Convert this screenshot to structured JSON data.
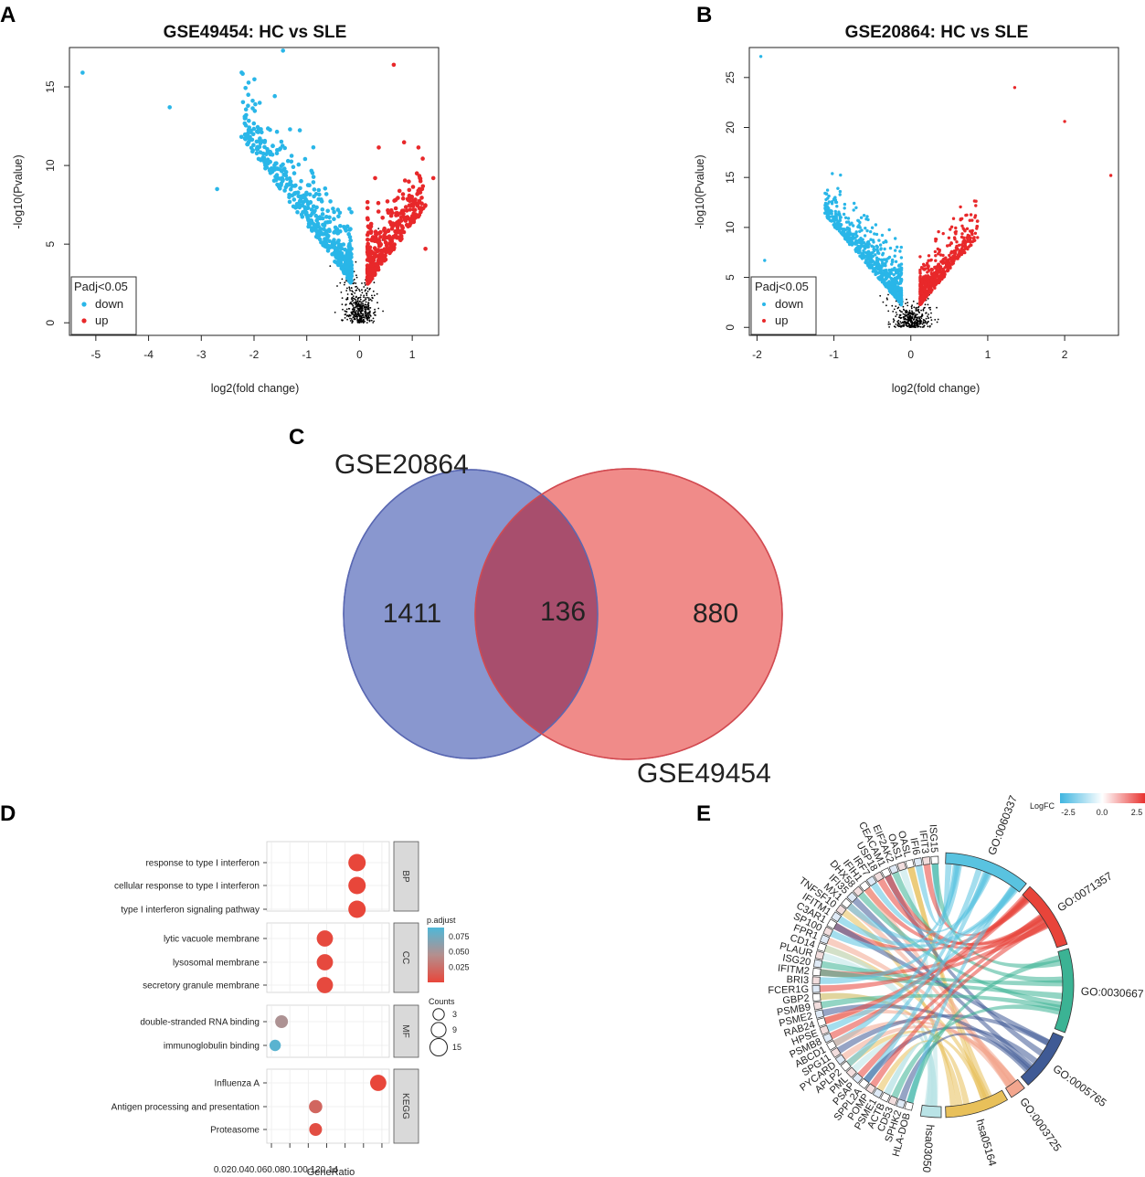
{
  "colors": {
    "down": "#29b6e8",
    "up": "#e8282a",
    "ns": "#000000",
    "venn_left": "#6f80c4",
    "venn_right": "#ec6e6c",
    "venn_overlap": "#a84e6d",
    "padj_low": "#e8463a",
    "padj_high": "#4fb8d8"
  },
  "panels": {
    "A": "A",
    "B": "B",
    "C": "C",
    "D": "D",
    "E": "E"
  },
  "chart_data": [
    {
      "id": "A",
      "type": "scatter",
      "title": "GSE49454: HC vs SLE",
      "xlabel": "log2(fold change)",
      "ylabel": "-log10(Pvalue)",
      "xlim": [
        -5.5,
        1.5
      ],
      "ylim": [
        -0.8,
        17.5
      ],
      "xticks": [
        -5,
        -4,
        -3,
        -2,
        -1,
        0,
        1
      ],
      "yticks": [
        0,
        5,
        10,
        15
      ],
      "legend": {
        "title": "Padj<0.05",
        "entries": [
          "down",
          "up"
        ],
        "position": "bottom-left"
      },
      "notable_points": [
        {
          "x": -5.25,
          "y": 15.9,
          "group": "down"
        },
        {
          "x": -1.45,
          "y": 17.3,
          "group": "down"
        },
        {
          "x": -3.6,
          "y": 13.7,
          "group": "down"
        },
        {
          "x": -2.7,
          "y": 8.5,
          "group": "down"
        },
        {
          "x": 0.65,
          "y": 16.4,
          "group": "up"
        },
        {
          "x": 1.4,
          "y": 9.2,
          "group": "up"
        },
        {
          "x": 1.25,
          "y": 4.7,
          "group": "up"
        }
      ]
    },
    {
      "id": "B",
      "type": "scatter",
      "title": "GSE20864: HC vs SLE",
      "xlabel": "log2(fold change)",
      "ylabel": "-log10(Pvalue)",
      "xlim": [
        -2.1,
        2.7
      ],
      "ylim": [
        -0.8,
        28
      ],
      "xticks": [
        -2,
        -1,
        0,
        1,
        2
      ],
      "yticks": [
        0,
        5,
        10,
        15,
        20,
        25
      ],
      "legend": {
        "title": "Padj<0.05",
        "entries": [
          "down",
          "up"
        ],
        "position": "bottom-left"
      },
      "notable_points": [
        {
          "x": -1.95,
          "y": 27.1,
          "group": "down"
        },
        {
          "x": -1.9,
          "y": 6.7,
          "group": "down"
        },
        {
          "x": 2.6,
          "y": 15.2,
          "group": "up"
        },
        {
          "x": 2.0,
          "y": 20.6,
          "group": "up"
        },
        {
          "x": 1.35,
          "y": 24.0,
          "group": "up"
        }
      ]
    },
    {
      "id": "C",
      "type": "venn",
      "sets": [
        {
          "name": "GSE20864",
          "only": "1411"
        },
        {
          "name": "GSE49454",
          "only": "880"
        }
      ],
      "overlap": "136"
    },
    {
      "id": "D",
      "type": "dotplot",
      "xlabel": "GeneRatio",
      "xticks": [
        "0.02",
        "0.04",
        "0.06",
        "0.08",
        "0.10",
        "0.12",
        "0.14"
      ],
      "xtick_text": "0.020.040.060.080.100.120.14",
      "xlim": [
        0.015,
        0.148
      ],
      "color_legend": {
        "title": "p.adjust",
        "ticks": [
          "0.075",
          "0.050",
          "0.025"
        ],
        "tick_values": [
          0.075,
          0.05,
          0.025
        ],
        "range": [
          0.0,
          0.09
        ]
      },
      "size_legend": {
        "title": "Counts",
        "entries": [
          {
            "label": "3",
            "value": 3
          },
          {
            "label": "9",
            "value": 9
          },
          {
            "label": "15",
            "value": 15
          }
        ]
      },
      "facets": [
        {
          "name": "BP",
          "terms": [
            {
              "term": "response to type I interferon",
              "ratio": 0.113,
              "count": 15,
              "padj": 0.0
            },
            {
              "term": "cellular response to type I interferon",
              "ratio": 0.113,
              "count": 15,
              "padj": 0.0
            },
            {
              "term": "type I interferon signaling pathway",
              "ratio": 0.113,
              "count": 15,
              "padj": 0.0
            }
          ]
        },
        {
          "name": "CC",
          "terms": [
            {
              "term": "lytic vacuole membrane",
              "ratio": 0.078,
              "count": 12,
              "padj": 0.002
            },
            {
              "term": "lysosomal membrane",
              "ratio": 0.078,
              "count": 12,
              "padj": 0.002
            },
            {
              "term": "secretory granule membrane",
              "ratio": 0.078,
              "count": 12,
              "padj": 0.002
            }
          ]
        },
        {
          "name": "MF",
          "terms": [
            {
              "term": "double-stranded RNA binding",
              "ratio": 0.031,
              "count": 5,
              "padj": 0.048
            },
            {
              "term": "immunoglobulin binding",
              "ratio": 0.024,
              "count": 3,
              "padj": 0.085
            }
          ]
        },
        {
          "name": "KEGG",
          "terms": [
            {
              "term": "Influenza A",
              "ratio": 0.136,
              "count": 12,
              "padj": 0.0
            },
            {
              "term": "Antigen processing and presentation",
              "ratio": 0.068,
              "count": 6,
              "padj": 0.02
            },
            {
              "term": "Proteasome",
              "ratio": 0.068,
              "count": 5,
              "padj": 0.005
            }
          ]
        }
      ]
    },
    {
      "id": "E",
      "type": "chord",
      "color_legend": {
        "title": "LogFC",
        "ticks": [
          "-2.5",
          "0.0",
          "2.5"
        ]
      },
      "terms": [
        {
          "id": "GO:0060337",
          "color": "#59c3e0"
        },
        {
          "id": "GO:0071357",
          "color": "#e8443a"
        },
        {
          "id": "GO:0030667",
          "color": "#3bb394"
        },
        {
          "id": "GO:0005765",
          "color": "#3f5a95"
        },
        {
          "id": "GO:0003725",
          "color": "#f3a68e"
        },
        {
          "id": "hsa05164",
          "color": "#e8c05a"
        },
        {
          "id": "hsa03050",
          "color": "#b9e3e6"
        }
      ],
      "genes": [
        "ISG15",
        "IFIT3",
        "IFI6",
        "OASL",
        "OAS1",
        "EIF2AK2",
        "CEACAM1",
        "USP18",
        "IRF7",
        "IFIH1",
        "DHX58",
        "IFI35",
        "MX1",
        "TNFSF10",
        "IFITM1",
        "C3AR1",
        "SP100",
        "FPR1",
        "CD14",
        "PLAUR",
        "ISG20",
        "IFITM2",
        "BRI3",
        "FCER1G",
        "GBP2",
        "PSMB9",
        "PSME2",
        "RAB24",
        "HPSE",
        "PSMB8",
        "ABCD1",
        "SPG11",
        "PYCARD",
        "APLP2",
        "PML",
        "PSAP",
        "SPPL2A",
        "POMP",
        "PSME1",
        "ACTB",
        "CD53",
        "SPHK2",
        "HLA-DOB"
      ]
    }
  ]
}
